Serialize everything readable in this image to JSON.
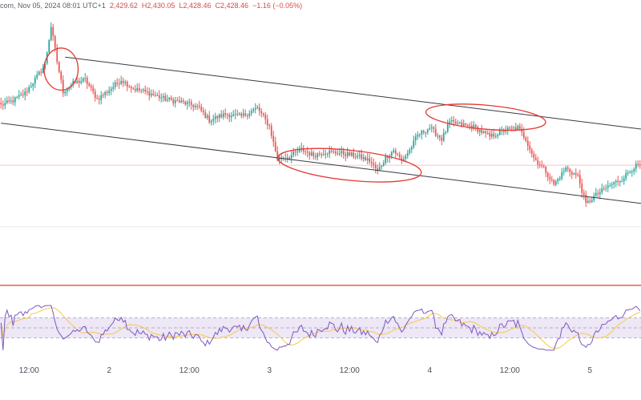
{
  "header": {
    "meta": "com, Nov 05, 2024 08:01 UTC+1",
    "open": "2,429.62",
    "high": "H2,430.05",
    "low": "L2,428.46",
    "close": "C2,428.46",
    "change": "−1.16 (−0.05%)"
  },
  "colors": {
    "up": "#26a69a",
    "down": "#ef5350",
    "channel": "#363a45",
    "annotation": "#e53935",
    "rsi_line": "#7e57c2",
    "rsi_ma": "#f7c948",
    "rsi_band": "#ede7f6",
    "separator": "#e53935"
  },
  "x_axis": {
    "ticks": [
      {
        "label": "12:00",
        "bar": 14
      },
      {
        "label": "2",
        "bar": 54
      },
      {
        "label": "12:00",
        "bar": 94
      },
      {
        "label": "3",
        "bar": 134
      },
      {
        "label": "12:00",
        "bar": 174
      },
      {
        "label": "4",
        "bar": 214
      },
      {
        "label": "12:00",
        "bar": 254
      },
      {
        "label": "5",
        "bar": 294
      }
    ],
    "total_bars": 320
  },
  "chart_data": {
    "type": "candlestick",
    "title": "",
    "price_ylim": [
      2000,
      2600
    ],
    "rsi_ylim": [
      0,
      100
    ],
    "rsi_levels": [
      30,
      50,
      70
    ],
    "anchors": [
      [
        0,
        2440
      ],
      [
        6,
        2446
      ],
      [
        12,
        2456
      ],
      [
        18,
        2478
      ],
      [
        22,
        2494
      ],
      [
        25,
        2545
      ],
      [
        28,
        2498
      ],
      [
        31,
        2458
      ],
      [
        36,
        2469
      ],
      [
        42,
        2474
      ],
      [
        48,
        2448
      ],
      [
        54,
        2460
      ],
      [
        60,
        2474
      ],
      [
        66,
        2462
      ],
      [
        74,
        2456
      ],
      [
        82,
        2448
      ],
      [
        90,
        2444
      ],
      [
        98,
        2438
      ],
      [
        104,
        2420
      ],
      [
        112,
        2428
      ],
      [
        120,
        2425
      ],
      [
        128,
        2436
      ],
      [
        134,
        2412
      ],
      [
        138,
        2368
      ],
      [
        144,
        2372
      ],
      [
        150,
        2381
      ],
      [
        156,
        2373
      ],
      [
        162,
        2378
      ],
      [
        170,
        2376
      ],
      [
        178,
        2372
      ],
      [
        184,
        2366
      ],
      [
        188,
        2352
      ],
      [
        192,
        2370
      ],
      [
        196,
        2380
      ],
      [
        200,
        2366
      ],
      [
        204,
        2380
      ],
      [
        208,
        2400
      ],
      [
        214,
        2410
      ],
      [
        220,
        2395
      ],
      [
        224,
        2417
      ],
      [
        230,
        2414
      ],
      [
        236,
        2411
      ],
      [
        244,
        2398
      ],
      [
        252,
        2407
      ],
      [
        258,
        2410
      ],
      [
        262,
        2395
      ],
      [
        266,
        2370
      ],
      [
        272,
        2352
      ],
      [
        276,
        2334
      ],
      [
        282,
        2356
      ],
      [
        288,
        2345
      ],
      [
        292,
        2308
      ],
      [
        296,
        2318
      ],
      [
        302,
        2330
      ],
      [
        310,
        2342
      ],
      [
        316,
        2358
      ],
      [
        320,
        2360
      ]
    ],
    "channel_lines": [
      {
        "points": [
          [
            32,
            2504
          ],
          [
            320,
            2408
          ]
        ]
      },
      {
        "points": [
          [
            0,
            2416
          ],
          [
            320,
            2309
          ]
        ]
      }
    ],
    "annotations": [
      {
        "shape": "ellipse",
        "center": [
          30,
          2488
        ],
        "radius_bars": 8.5,
        "radius_price": 28
      },
      {
        "shape": "ellipse",
        "center": [
          174,
          2360
        ],
        "radius_bars": 36,
        "radius_price": 20
      },
      {
        "shape": "ellipse",
        "center": [
          242,
          2424
        ],
        "radius_bars": 30,
        "radius_price": 16
      }
    ],
    "horizontal_levels": [
      {
        "value": 2360,
        "color": "#f8c4c4"
      },
      {
        "value": 2278,
        "color": "#e5e7ec"
      }
    ]
  }
}
